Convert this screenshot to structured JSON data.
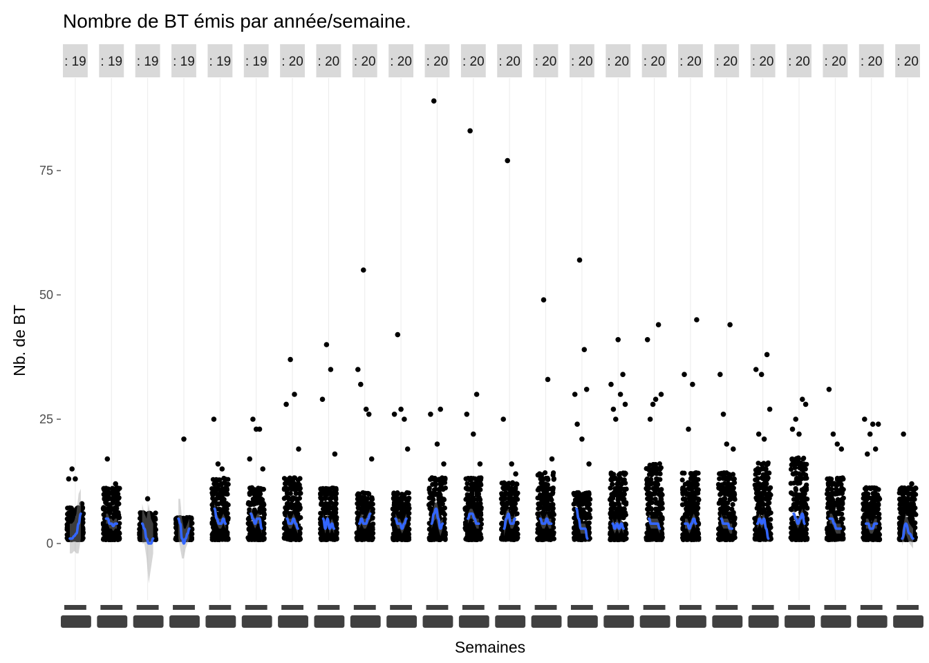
{
  "chart_data": {
    "type": "scatter",
    "title": "Nombre de BT émis par année/semaine.",
    "xlabel": "Semaines",
    "ylabel": "Nb. de BT",
    "ylim": [
      -13,
      93
    ],
    "y_ticks": [
      0,
      25,
      50,
      75
    ],
    "grid": true,
    "legend": "none",
    "colors": {
      "points": "#000000",
      "smooth_line": "#3366ff",
      "ribbon": "#999999",
      "strip_bg": "#d9d9d9",
      "grid": "#ebebeb",
      "tick_band": "#404040"
    },
    "facets": [
      {
        "label": ": 19",
        "smooth": [
          1,
          1,
          1.5,
          2,
          4,
          6
        ],
        "band": [
          3,
          3,
          3,
          4,
          6,
          5
        ],
        "max": 7,
        "outliers": [
          13,
          15,
          13,
          4,
          8
        ]
      },
      {
        "label": ": 19",
        "smooth": [
          5,
          5,
          4,
          4,
          3.5,
          4,
          4
        ],
        "band": [
          1,
          1,
          1,
          1,
          1,
          1,
          1
        ],
        "max": 11,
        "outliers": [
          17,
          12
        ]
      },
      {
        "label": ": 19",
        "smooth": [
          4,
          3,
          1,
          0,
          0,
          1
        ],
        "band": [
          4,
          3,
          4,
          8,
          5,
          3
        ],
        "max": 6,
        "outliers": [
          9
        ]
      },
      {
        "label": ": 19",
        "smooth": [
          5,
          4,
          1,
          0,
          1,
          2,
          3
        ],
        "band": [
          4,
          5,
          4,
          3,
          2,
          2,
          2
        ],
        "max": 5,
        "outliers": [
          21
        ]
      },
      {
        "label": ": 19",
        "smooth": [
          7,
          5,
          4,
          4,
          5,
          4
        ],
        "band": [
          1.2,
          1,
          1,
          1,
          1,
          1
        ],
        "max": 13,
        "outliers": [
          25,
          16,
          15,
          10
        ]
      },
      {
        "label": ": 19",
        "smooth": [
          6,
          5,
          4,
          5,
          5,
          3
        ],
        "band": [
          1,
          1,
          1,
          1,
          1,
          1
        ],
        "max": 11,
        "outliers": [
          17,
          25,
          23,
          23,
          15
        ]
      },
      {
        "label": ": 20",
        "smooth": [
          5,
          4,
          4,
          5,
          4,
          3
        ],
        "band": [
          1,
          1,
          1,
          1,
          1,
          1
        ],
        "max": 13,
        "outliers": [
          28,
          37,
          30,
          19
        ]
      },
      {
        "label": ": 20",
        "smooth": [
          5,
          3,
          5,
          3,
          4,
          3
        ],
        "band": [
          1,
          1,
          1,
          1,
          1,
          1
        ],
        "max": 11,
        "outliers": [
          29,
          40,
          35,
          18
        ]
      },
      {
        "label": ": 20",
        "smooth": [
          4,
          5,
          4,
          4,
          5,
          6
        ],
        "band": [
          1,
          1,
          1,
          1,
          1,
          1
        ],
        "max": 10,
        "outliers": [
          35,
          32,
          55,
          27,
          26,
          17
        ]
      },
      {
        "label": ": 20",
        "smooth": [
          5,
          4,
          4,
          3,
          4,
          5
        ],
        "band": [
          1,
          1,
          1,
          1,
          1,
          1
        ],
        "max": 10,
        "outliers": [
          26,
          42,
          27,
          25,
          19
        ]
      },
      {
        "label": ": 20",
        "smooth": [
          4,
          6,
          7,
          5,
          3,
          4
        ],
        "band": [
          1,
          1.5,
          2,
          2,
          1.5,
          1
        ],
        "max": 13,
        "outliers": [
          26,
          89,
          20,
          27,
          16
        ]
      },
      {
        "label": ": 20",
        "smooth": [
          5,
          6,
          6,
          5,
          4,
          4
        ],
        "band": [
          1,
          1,
          1,
          1,
          1,
          1
        ],
        "max": 13,
        "outliers": [
          26,
          83,
          22,
          30,
          16
        ]
      },
      {
        "label": ": 20",
        "smooth": [
          3,
          5,
          6,
          4,
          4,
          5
        ],
        "band": [
          1.5,
          1.5,
          1,
          1,
          1,
          1
        ],
        "max": 12,
        "outliers": [
          25,
          77,
          16,
          14
        ]
      },
      {
        "label": ": 20",
        "smooth": [
          5,
          4,
          4,
          5,
          4,
          4
        ],
        "band": [
          1,
          1,
          1,
          1,
          1,
          1
        ],
        "max": 14,
        "outliers": [
          14,
          49,
          33,
          17
        ]
      },
      {
        "label": ": 20",
        "smooth": [
          7,
          5,
          3,
          3,
          3,
          1
        ],
        "band": [
          1,
          1,
          1,
          1,
          1,
          1
        ],
        "max": 10,
        "outliers": [
          30,
          24,
          57,
          21,
          39,
          31,
          16
        ]
      },
      {
        "label": ": 20",
        "smooth": [
          4,
          3,
          4,
          3,
          4,
          3
        ],
        "band": [
          1,
          1,
          1,
          1,
          1,
          1
        ],
        "max": 14,
        "outliers": [
          32,
          27,
          25,
          41,
          30,
          34,
          28
        ]
      },
      {
        "label": ": 20",
        "smooth": [
          5,
          4,
          4,
          4,
          4,
          3
        ],
        "band": [
          1,
          1,
          1,
          1,
          1,
          1
        ],
        "max": 16,
        "outliers": [
          41,
          25,
          28,
          29,
          44,
          30
        ]
      },
      {
        "label": ": 20",
        "smooth": [
          4,
          4,
          3,
          4,
          5,
          4
        ],
        "band": [
          1,
          1,
          1,
          1,
          1,
          1
        ],
        "max": 14,
        "outliers": [
          34,
          23,
          32,
          45
        ]
      },
      {
        "label": ": 20",
        "smooth": [
          5,
          4,
          4,
          4,
          3,
          3
        ],
        "band": [
          1,
          1,
          1,
          1,
          1,
          1
        ],
        "max": 14,
        "outliers": [
          34,
          26,
          20,
          44,
          19
        ]
      },
      {
        "label": ": 20",
        "smooth": [
          4,
          5,
          4,
          5,
          3,
          1
        ],
        "band": [
          1,
          1,
          1,
          1,
          1,
          1
        ],
        "max": 16,
        "outliers": [
          35,
          22,
          34,
          21,
          38,
          27
        ]
      },
      {
        "label": ": 20",
        "smooth": [
          6,
          5,
          4,
          5,
          6,
          4
        ],
        "band": [
          1,
          1,
          1,
          1,
          1,
          1
        ],
        "max": 17,
        "outliers": [
          23,
          25,
          22,
          29,
          28
        ]
      },
      {
        "label": ": 20",
        "smooth": [
          5,
          5,
          4,
          3,
          3,
          3
        ],
        "band": [
          1,
          1,
          1,
          1,
          1,
          1
        ],
        "max": 13,
        "outliers": [
          31,
          22,
          20,
          19
        ]
      },
      {
        "label": ": 20",
        "smooth": [
          4,
          4,
          3,
          3,
          4,
          4
        ],
        "band": [
          1,
          1,
          1,
          1,
          1,
          1
        ],
        "max": 11,
        "outliers": [
          25,
          18,
          22,
          24,
          19,
          24
        ]
      },
      {
        "label": ": 20",
        "smooth": [
          1,
          4,
          2,
          1
        ],
        "band": [
          1.5,
          2,
          2,
          2
        ],
        "max": 11,
        "outliers": [
          22,
          12
        ]
      }
    ]
  }
}
